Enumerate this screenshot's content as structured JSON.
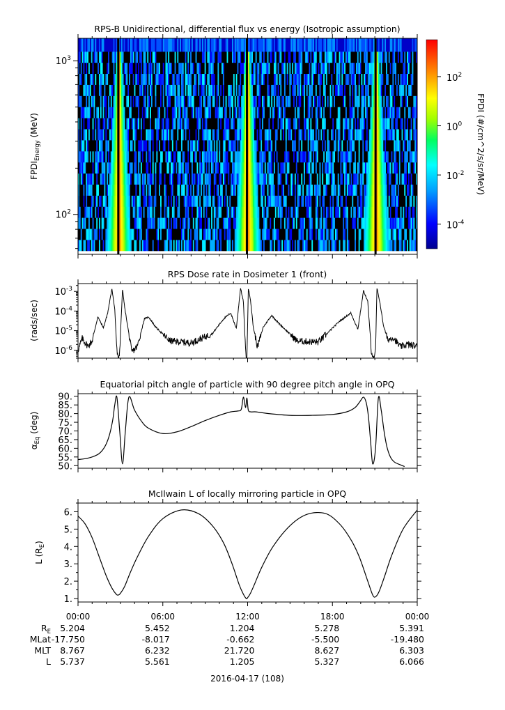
{
  "figure": {
    "date_label": "2016-04-17 (108)",
    "x_tick_labels": [
      "00:00",
      "06:00",
      "12:00",
      "18:00",
      "00:00"
    ],
    "ephemeris_rows": [
      {
        "label": "R",
        "sub": "E",
        "values": [
          "5.204",
          "5.452",
          "1.204",
          "5.278",
          "5.391"
        ]
      },
      {
        "label": "MLat",
        "sub": "",
        "values": [
          "-17.750",
          "-8.017",
          "-0.662",
          "-5.500",
          "-19.480"
        ]
      },
      {
        "label": "MLT",
        "sub": "",
        "values": [
          "8.767",
          "6.232",
          "21.720",
          "8.627",
          "6.303"
        ]
      },
      {
        "label": "L",
        "sub": "",
        "values": [
          "5.737",
          "5.561",
          "1.205",
          "5.327",
          "6.066"
        ]
      }
    ]
  },
  "chart_data": [
    {
      "type": "heatmap",
      "title": "RPS-B  Unidirectional, differential flux vs energy (Isotropic assumption)",
      "ylabel_main": "FPDI",
      "ylabel_sub": "Energy",
      "ylabel_unit": " (MeV)",
      "yscale": "log",
      "ylim": [
        55,
        1400
      ],
      "yticks": [
        {
          "value": 100,
          "base": "10",
          "exp": "2"
        },
        {
          "value": 1000,
          "base": "10",
          "exp": "3"
        }
      ],
      "xlim_hours": [
        0,
        24
      ],
      "colorbar": {
        "label": "FPDI (#/cm^2/s/sr/MeV)",
        "scale": "log",
        "range_exp": [
          -5,
          3.5
        ],
        "ticks": [
          {
            "base": "10",
            "exp": "2"
          },
          {
            "base": "10",
            "exp": "0"
          },
          {
            "base": "10",
            "exp": "-2"
          },
          {
            "base": "10",
            "exp": "-4"
          }
        ]
      },
      "belt_crossings_hours": [
        2.9,
        12.0,
        21.1
      ],
      "perigee_hours": [
        2.85,
        11.95,
        21.05
      ]
    },
    {
      "type": "line",
      "title": "RPS  Dose rate in Dosimeter 1 (front)",
      "ylabel": "(rads/sec)",
      "yscale": "log",
      "ylim": [
        4e-07,
        0.0025
      ],
      "yticks": [
        {
          "base": "10",
          "exp": "-3"
        },
        {
          "base": "10",
          "exp": "-4"
        },
        {
          "base": "10",
          "exp": "-5"
        },
        {
          "base": "10",
          "exp": "-6"
        }
      ],
      "x_hours": [
        0,
        0.3,
        0.7,
        1.0,
        1.4,
        1.8,
        2.1,
        2.4,
        2.6,
        2.75,
        2.85,
        2.95,
        3.15,
        3.3,
        3.5,
        3.8,
        4.2,
        4.7,
        5.0,
        5.5,
        6.5,
        8.0,
        9.5,
        10.3,
        10.8,
        11.2,
        11.5,
        11.7,
        11.85,
        11.95,
        12.05,
        12.2,
        12.4,
        12.7,
        13.1,
        13.7,
        14.2,
        15.5,
        17.0,
        18.5,
        19.3,
        19.8,
        20.2,
        20.5,
        20.75,
        20.95,
        21.05,
        21.15,
        21.35,
        21.6,
        21.9,
        22.3,
        22.8,
        23.3,
        24.0
      ],
      "y_values": [
        1e-06,
        4e-06,
        1.6e-06,
        3e-06,
        5e-05,
        1.4e-05,
        8e-05,
        0.0014,
        0.00012,
        1e-06,
        3e-07,
        1e-06,
        0.0013,
        0.00015,
        2e-05,
        8e-07,
        1.6e-06,
        4e-05,
        5e-05,
        1.5e-05,
        3e-06,
        2.4e-06,
        7e-06,
        4e-05,
        8e-05,
        1.3e-05,
        0.0015,
        0.0003,
        1e-06,
        3e-07,
        0.0014,
        0.0004,
        1.5e-05,
        1.5e-06,
        1.5e-05,
        6e-05,
        2.4e-05,
        3e-06,
        2.6e-06,
        3e-05,
        8e-05,
        1.2e-05,
        0.0011,
        0.0003,
        1e-06,
        3e-07,
        1e-06,
        0.0014,
        0.0003,
        2e-05,
        3.5e-06,
        4.5e-06,
        1.5e-06,
        2e-06,
        1.6e-06
      ]
    },
    {
      "type": "line",
      "title": "Equatorial pitch angle of particle with 90 degree pitch angle in OPQ",
      "ylabel_main": "α",
      "ylabel_sub": "Eq",
      "ylabel_unit": " (deg)",
      "ylim": [
        48.5,
        91.5
      ],
      "yticks": [
        50,
        55,
        60,
        65,
        70,
        75,
        80,
        85,
        90
      ],
      "ytick_labels": [
        "50.",
        "55.",
        "60.",
        "65.",
        "70.",
        "75.",
        "80.",
        "85.",
        "90."
      ],
      "x_hours": [
        0,
        0.5,
        1.0,
        1.5,
        1.9,
        2.2,
        2.45,
        2.6,
        2.75,
        2.95,
        3.15,
        3.35,
        3.6,
        4.0,
        4.5,
        5.0,
        6.0,
        7.0,
        8.0,
        9.0,
        10.0,
        10.8,
        11.3,
        11.55,
        11.7,
        11.85,
        11.95,
        12.05,
        12.25,
        12.6,
        13.5,
        15.0,
        16.5,
        18.0,
        19.0,
        19.6,
        19.95,
        20.2,
        20.4,
        20.55,
        20.7,
        20.85,
        21.05,
        21.25,
        21.45,
        21.65,
        21.85,
        22.1,
        22.4,
        22.8,
        23.1
      ],
      "y_values": [
        53.5,
        54.0,
        55.0,
        57.0,
        61.0,
        67.0,
        76.0,
        85.0,
        89.5,
        70.0,
        51.0,
        70.0,
        89.5,
        82.0,
        75.5,
        71.5,
        68.5,
        69.5,
        72.5,
        76.0,
        79.0,
        81.0,
        81.5,
        82.5,
        89.5,
        83.5,
        89.0,
        82.0,
        81.0,
        81.0,
        80.0,
        79.0,
        79.0,
        79.5,
        81.0,
        83.5,
        87.0,
        89.5,
        86.0,
        78.0,
        64.0,
        51.0,
        60.0,
        89.0,
        82.0,
        70.0,
        61.0,
        55.0,
        52.0,
        50.5,
        49.5
      ]
    },
    {
      "type": "line",
      "title": "McIlwain L of locally mirroring particle in OPQ",
      "ylabel_main": "L (R",
      "ylabel_sub": "E",
      "ylabel_unit": ")",
      "ylim": [
        0.8,
        6.5
      ],
      "yticks": [
        1,
        2,
        3,
        4,
        5,
        6
      ],
      "ytick_labels": [
        "1.",
        "2.",
        "3.",
        "4.",
        "5.",
        "6."
      ],
      "x_hours": [
        0,
        0.5,
        1.0,
        1.5,
        2.0,
        2.4,
        2.7,
        2.85,
        3.0,
        3.3,
        3.7,
        4.2,
        5.0,
        6.0,
        7.3,
        8.5,
        9.5,
        10.3,
        10.9,
        11.4,
        11.7,
        11.9,
        12.0,
        12.2,
        12.5,
        13.0,
        13.8,
        15.0,
        16.2,
        17.5,
        18.5,
        19.3,
        19.9,
        20.5,
        20.85,
        21.05,
        21.3,
        21.7,
        22.2,
        23.0,
        24.0
      ],
      "y_values": [
        5.75,
        5.3,
        4.5,
        3.4,
        2.3,
        1.6,
        1.25,
        1.2,
        1.3,
        1.7,
        2.5,
        3.4,
        4.6,
        5.6,
        6.1,
        5.9,
        5.2,
        4.2,
        3.0,
        1.8,
        1.25,
        1.0,
        1.05,
        1.3,
        1.85,
        2.8,
        4.0,
        5.2,
        5.85,
        5.9,
        5.3,
        4.4,
        3.4,
        2.0,
        1.2,
        1.1,
        1.4,
        2.3,
        3.5,
        5.0,
        6.1
      ]
    }
  ]
}
